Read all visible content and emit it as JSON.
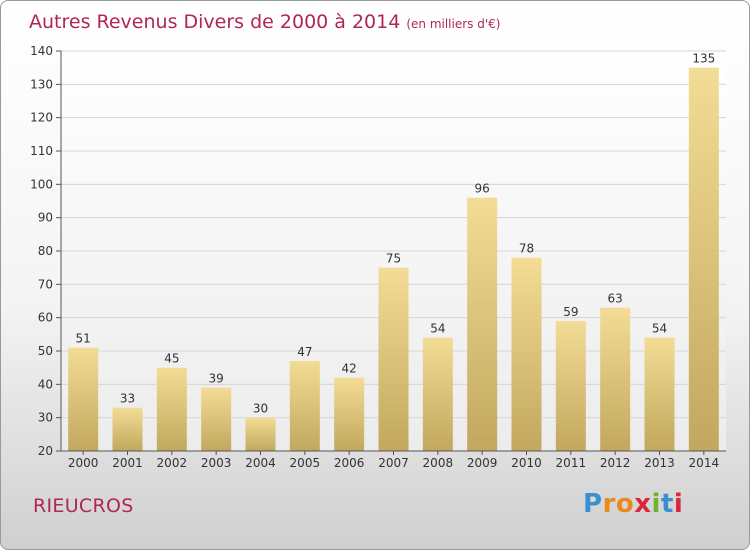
{
  "header": {
    "title": "Autres Revenus Divers de 2000 à 2014",
    "unit": "(en milliers d'€)"
  },
  "footer": {
    "place": "RIEUCROS",
    "brand_letters": [
      "P",
      "r",
      "o",
      "x",
      "i",
      "t",
      "i"
    ],
    "brand_colors": [
      "#3a8fd0",
      "#e98a1c",
      "#e98a1c",
      "#d8283c",
      "#6ab42e",
      "#3a8fd0",
      "#d8283c"
    ]
  },
  "chart_data": {
    "type": "bar",
    "categories": [
      "2000",
      "2001",
      "2002",
      "2003",
      "2004",
      "2005",
      "2006",
      "2007",
      "2008",
      "2009",
      "2010",
      "2011",
      "2012",
      "2013",
      "2014"
    ],
    "values": [
      51,
      33,
      45,
      39,
      30,
      47,
      42,
      75,
      54,
      96,
      78,
      59,
      63,
      54,
      135
    ],
    "ylim": [
      20,
      140
    ],
    "yticks": [
      20,
      30,
      40,
      50,
      60,
      70,
      80,
      90,
      100,
      110,
      120,
      130,
      140
    ],
    "grid": true,
    "bar_color": "#e8cf86"
  }
}
